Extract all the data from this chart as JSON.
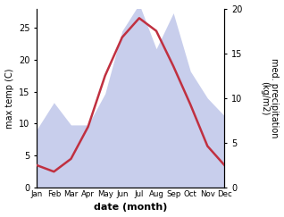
{
  "months": [
    1,
    2,
    3,
    4,
    5,
    6,
    7,
    8,
    9,
    10,
    11,
    12
  ],
  "month_labels": [
    "Jan",
    "Feb",
    "Mar",
    "Apr",
    "May",
    "Jun",
    "Jul",
    "Aug",
    "Sep",
    "Oct",
    "Nov",
    "Dec"
  ],
  "temperature": [
    3.5,
    2.5,
    4.5,
    9.5,
    17.5,
    23.5,
    26.5,
    24.5,
    19.0,
    13.0,
    6.5,
    3.5
  ],
  "precipitation": [
    6.5,
    9.5,
    7.0,
    7.0,
    10.5,
    17.5,
    20.5,
    15.5,
    19.5,
    13.0,
    10.0,
    8.0
  ],
  "temp_color": "#c03040",
  "precip_fill_color": "#c8ceec",
  "precip_line_color": "#c8ceec",
  "temp_ylim": [
    0,
    28
  ],
  "precip_ylim": [
    0,
    20
  ],
  "temp_yticks": [
    0,
    5,
    10,
    15,
    20,
    25
  ],
  "precip_yticks": [
    0,
    5,
    10,
    15,
    20
  ],
  "ylabel_left": "max temp (C)",
  "ylabel_right": "med. precipitation\n(kg/m2)",
  "xlabel": "date (month)",
  "background_color": "#ffffff",
  "plot_bg_color": "#ffffff",
  "linewidth_temp": 1.8,
  "figsize": [
    3.18,
    2.43
  ],
  "dpi": 100
}
